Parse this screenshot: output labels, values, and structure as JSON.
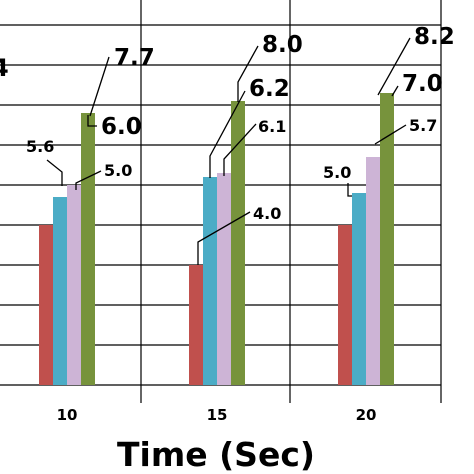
{
  "chart_data": {
    "type": "bar",
    "title": "",
    "xlabel": "Time (Sec)",
    "ylabel": "",
    "categories": [
      "10",
      "15",
      "20"
    ],
    "series": [
      {
        "color": "#c0504d",
        "values": [
          4.0,
          3.0,
          4.0
        ]
      },
      {
        "color": "#4bacc6",
        "values": [
          4.7,
          5.2,
          4.8
        ]
      },
      {
        "color": "#cdb4d6",
        "values": [
          5.0,
          5.3,
          5.7
        ]
      },
      {
        "color": "#77933c",
        "values": [
          6.8,
          7.1,
          7.3
        ]
      }
    ],
    "annotations": [
      {
        "text": "5.6",
        "category": "10"
      },
      {
        "text": "5.0",
        "category": "10"
      },
      {
        "text": "6.0",
        "category": "10"
      },
      {
        "text": "7.7",
        "category": "10"
      },
      {
        "text": "4.0",
        "category": "15"
      },
      {
        "text": "6.1",
        "category": "15"
      },
      {
        "text": "6.2",
        "category": "15"
      },
      {
        "text": "8.0",
        "category": "15"
      },
      {
        "text": "5.0",
        "category": "20"
      },
      {
        "text": "5.7",
        "category": "20"
      },
      {
        "text": "7.0",
        "category": "20"
      },
      {
        "text": "8.2",
        "category": "20"
      }
    ],
    "y_partial_tick_label": "4",
    "ylim": [
      0,
      9
    ],
    "grid": true
  }
}
